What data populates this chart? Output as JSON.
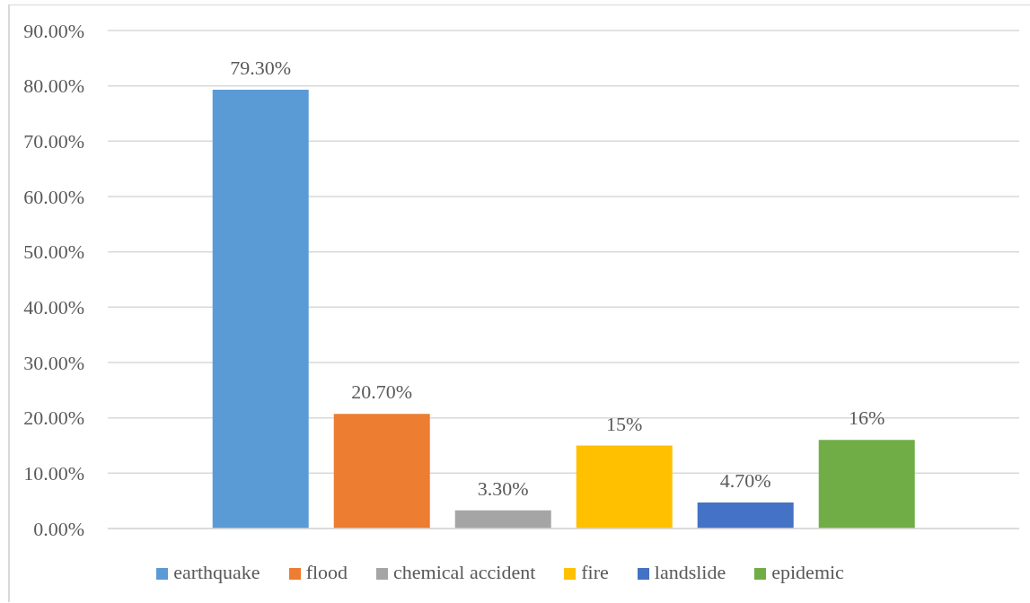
{
  "chart_data": {
    "type": "bar",
    "categories": [
      null
    ],
    "series": [
      {
        "name": "earthquake",
        "color": "#5b9bd5",
        "values": [
          79.3
        ],
        "value_labels": [
          "79.30%"
        ]
      },
      {
        "name": "flood",
        "color": "#ed7d31",
        "values": [
          20.7
        ],
        "value_labels": [
          "20.70%"
        ]
      },
      {
        "name": "chemical accident",
        "color": "#a5a5a5",
        "values": [
          3.3
        ],
        "value_labels": [
          "3.30%"
        ]
      },
      {
        "name": "fire",
        "color": "#ffc000",
        "values": [
          15
        ],
        "value_labels": [
          "15%"
        ]
      },
      {
        "name": "landslide",
        "color": "#4472c4",
        "values": [
          4.7
        ],
        "value_labels": [
          "4.70%"
        ]
      },
      {
        "name": "epidemic",
        "color": "#70ad47",
        "values": [
          16
        ],
        "value_labels": [
          "16%"
        ]
      }
    ],
    "ylim": [
      0,
      90
    ],
    "yticks": [
      {
        "value": 0,
        "label": "0.00%"
      },
      {
        "value": 10,
        "label": "10.00%"
      },
      {
        "value": 20,
        "label": "20.00%"
      },
      {
        "value": 30,
        "label": "30.00%"
      },
      {
        "value": 40,
        "label": "40.00%"
      },
      {
        "value": 50,
        "label": "50.00%"
      },
      {
        "value": 60,
        "label": "60.00%"
      },
      {
        "value": 70,
        "label": "70.00%"
      },
      {
        "value": 80,
        "label": "80.00%"
      },
      {
        "value": 90,
        "label": "90.00%"
      }
    ],
    "grid": "y",
    "legend": "bottom",
    "tick_labels": "y"
  }
}
